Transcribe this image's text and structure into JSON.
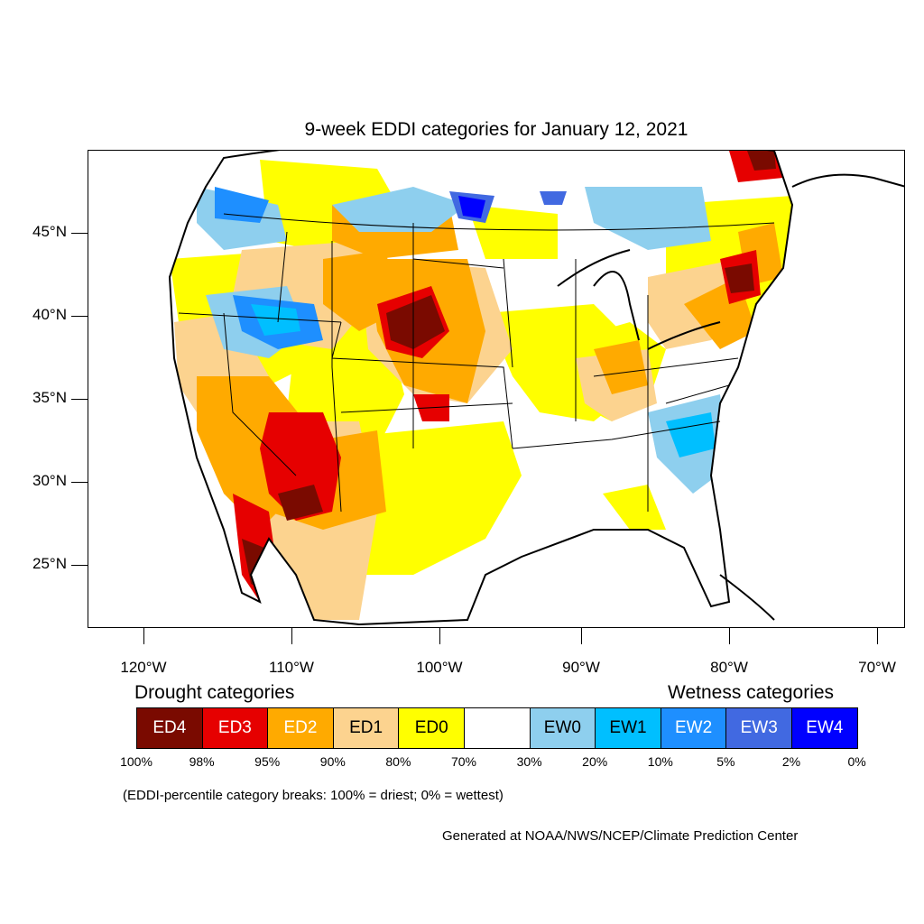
{
  "title": "9-week EDDI categories for January 12, 2021",
  "y_axis_labels": [
    "45°N",
    "40°N",
    "35°N",
    "30°N",
    "25°N"
  ],
  "x_axis_labels": [
    "120°W",
    "110°W",
    "100°W",
    "90°W",
    "80°W",
    "70°W"
  ],
  "legend": {
    "drought_heading": "Drought categories",
    "wetness_heading": "Wetness categories",
    "categories": [
      {
        "label": "ED4",
        "color": "#7a0a00",
        "text_color": "#ffffff"
      },
      {
        "label": "ED3",
        "color": "#e60000",
        "text_color": "#ffffff"
      },
      {
        "label": "ED2",
        "color": "#ffaa00",
        "text_color": "#ffffff"
      },
      {
        "label": "ED1",
        "color": "#fcd38f",
        "text_color": "#000000"
      },
      {
        "label": "ED0",
        "color": "#ffff00",
        "text_color": "#000000"
      },
      {
        "label": "",
        "color": "#ffffff",
        "text_color": "#000000"
      },
      {
        "label": "EW0",
        "color": "#8ecfee",
        "text_color": "#000000"
      },
      {
        "label": "EW1",
        "color": "#00bfff",
        "text_color": "#000000"
      },
      {
        "label": "EW2",
        "color": "#1e8fff",
        "text_color": "#ffffff"
      },
      {
        "label": "EW3",
        "color": "#4169e1",
        "text_color": "#ffffff"
      },
      {
        "label": "EW4",
        "color": "#0000ff",
        "text_color": "#ffffff"
      }
    ],
    "percentiles": [
      "100%",
      "98%",
      "95%",
      "90%",
      "80%",
      "70%",
      "30%",
      "20%",
      "10%",
      "5%",
      "2%",
      "0%"
    ]
  },
  "note": "(EDDI-percentile category breaks: 100% = driest; 0% = wettest)",
  "credit": "Generated at NOAA/NWS/NCEP/Climate Prediction Center"
}
